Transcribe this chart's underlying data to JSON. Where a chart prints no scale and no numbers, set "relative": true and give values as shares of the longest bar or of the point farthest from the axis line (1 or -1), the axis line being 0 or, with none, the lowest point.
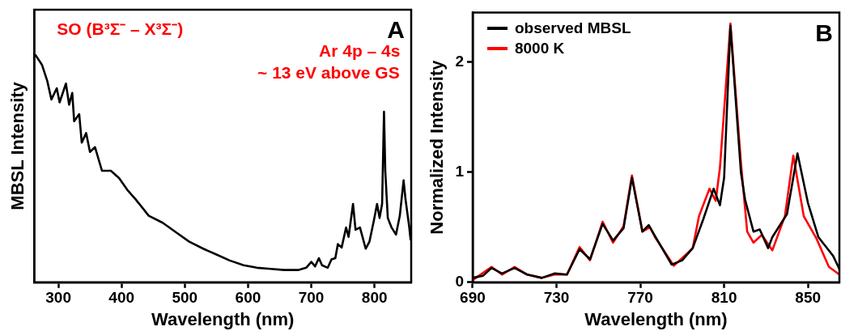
{
  "chart_data": [
    {
      "type": "line",
      "title": "A",
      "xlabel": "Wavelength (nm)",
      "ylabel": "MBSL Intensity",
      "relative": true,
      "annotations": [
        "SO (B³Σ⁻ – X³Σ⁻)",
        "Ar 4p – 4s",
        "~ 13 eV above GS"
      ],
      "xlim": [
        262,
        858
      ],
      "xticks": [
        300,
        400,
        500,
        600,
        700,
        800
      ],
      "grid": false,
      "legend": false,
      "marker": "none",
      "line_style": "solid",
      "series": [
        {
          "color": "#000000",
          "x": [
            264,
            274,
            282.5,
            289,
            297.5,
            302,
            312,
            317,
            322,
            325,
            333,
            337,
            344,
            350,
            358,
            369,
            383,
            396,
            409,
            422,
            443,
            465,
            486,
            507,
            529,
            550,
            571,
            593,
            614,
            636,
            657,
            679,
            692,
            700,
            706,
            712,
            717,
            726,
            732,
            738,
            742,
            748,
            755,
            759,
            766,
            770,
            777,
            786,
            792,
            799,
            804,
            808,
            812,
            815,
            817,
            821,
            827,
            834,
            840,
            846,
            849,
            855,
            857
          ],
          "values": [
            1.0,
            0.958,
            0.886,
            0.805,
            0.854,
            0.792,
            0.875,
            0.782,
            0.834,
            0.709,
            0.74,
            0.615,
            0.657,
            0.574,
            0.595,
            0.491,
            0.491,
            0.459,
            0.407,
            0.366,
            0.293,
            0.262,
            0.22,
            0.179,
            0.148,
            0.122,
            0.096,
            0.075,
            0.064,
            0.059,
            0.054,
            0.054,
            0.064,
            0.09,
            0.07,
            0.106,
            0.075,
            0.064,
            0.101,
            0.106,
            0.168,
            0.153,
            0.241,
            0.2,
            0.345,
            0.231,
            0.241,
            0.148,
            0.179,
            0.272,
            0.345,
            0.283,
            0.345,
            0.751,
            0.491,
            0.283,
            0.241,
            0.21,
            0.293,
            0.449,
            0.366,
            0.241,
            0.189
          ]
        }
      ]
    },
    {
      "type": "line",
      "title": "B",
      "xlabel": "Wavelength (nm)",
      "ylabel": "Normalized Intensity",
      "xlim": [
        690,
        865
      ],
      "xticks": [
        690,
        730,
        770,
        810,
        850
      ],
      "ylim": [
        0,
        2.45
      ],
      "yticks": [
        0,
        1,
        2
      ],
      "grid": false,
      "legend": "top left",
      "marker": "none",
      "line_style": "solid",
      "series": [
        {
          "name": "observed MBSL",
          "color": "#000000",
          "x": [
            690,
            695,
            699,
            704,
            710,
            716,
            723,
            729,
            735,
            741,
            746,
            752,
            757,
            762,
            766,
            771,
            774,
            777,
            785,
            790,
            795,
            800,
            805,
            808,
            810,
            813,
            818,
            820,
            824,
            827,
            831,
            833,
            840,
            845,
            850,
            855,
            862,
            865
          ],
          "values": [
            0.04,
            0.06,
            0.13,
            0.08,
            0.13,
            0.07,
            0.04,
            0.08,
            0.07,
            0.3,
            0.21,
            0.53,
            0.38,
            0.49,
            0.95,
            0.46,
            0.52,
            0.42,
            0.16,
            0.2,
            0.31,
            0.57,
            0.85,
            0.7,
            0.95,
            2.33,
            1.0,
            0.75,
            0.46,
            0.48,
            0.31,
            0.41,
            0.62,
            1.17,
            0.72,
            0.41,
            0.24,
            0.12
          ]
        },
        {
          "name": "8000 K",
          "color": "#ff0000",
          "x": [
            690,
            699,
            704,
            710,
            716,
            723,
            729,
            735,
            741,
            746,
            752,
            757,
            762,
            766,
            771,
            774.6,
            777,
            786,
            795,
            798,
            803,
            806,
            808,
            813,
            818,
            821,
            824,
            828,
            833,
            839,
            843,
            848,
            854,
            860,
            865
          ],
          "values": [
            0.02,
            0.14,
            0.07,
            0.14,
            0.07,
            0.04,
            0.07,
            0.07,
            0.32,
            0.2,
            0.55,
            0.36,
            0.51,
            0.97,
            0.46,
            0.5,
            0.41,
            0.15,
            0.31,
            0.6,
            0.85,
            0.74,
            1.04,
            2.35,
            1.09,
            0.46,
            0.36,
            0.43,
            0.29,
            0.6,
            1.15,
            0.6,
            0.4,
            0.14,
            0.07
          ]
        }
      ]
    }
  ]
}
